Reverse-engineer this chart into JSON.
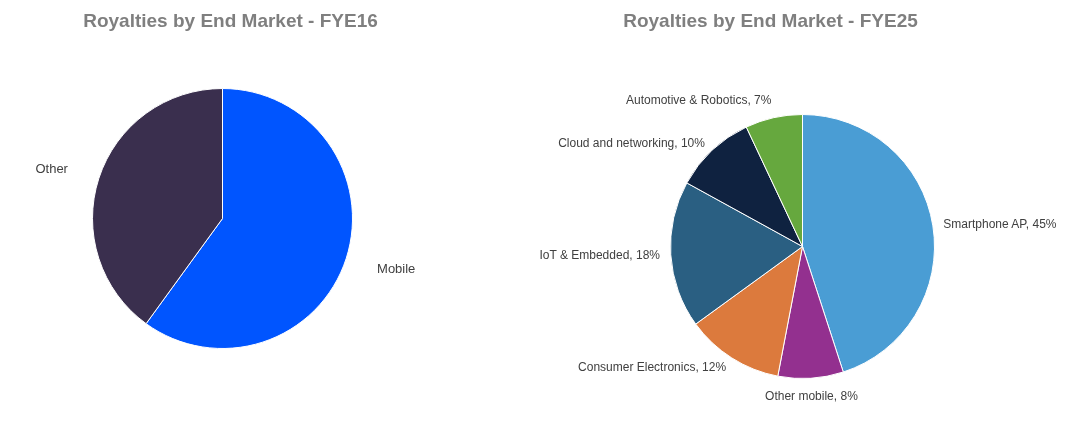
{
  "chart_data": [
    {
      "type": "pie",
      "title": "Royalties by End Market - FYE16",
      "categories": [
        "Mobile",
        "Other"
      ],
      "values": [
        60,
        40
      ],
      "colors": [
        "#0055ff",
        "#3a2f4e"
      ]
    },
    {
      "type": "pie",
      "title": "Royalties by End Market - FYE25",
      "categories": [
        "Smartphone AP",
        "Other mobile",
        "Consumer Electronics",
        "IoT & Embedded",
        "Cloud and networking",
        "Automotive & Robotics"
      ],
      "values": [
        45,
        8,
        12,
        18,
        10,
        7
      ],
      "colors": [
        "#4a9dd4",
        "#93308f",
        "#dc7a3d",
        "#2a5f82",
        "#0f2240",
        "#66a83e"
      ],
      "value_labels": [
        "45%",
        "8%",
        "12%",
        "18%",
        "10%",
        "7%"
      ]
    }
  ]
}
